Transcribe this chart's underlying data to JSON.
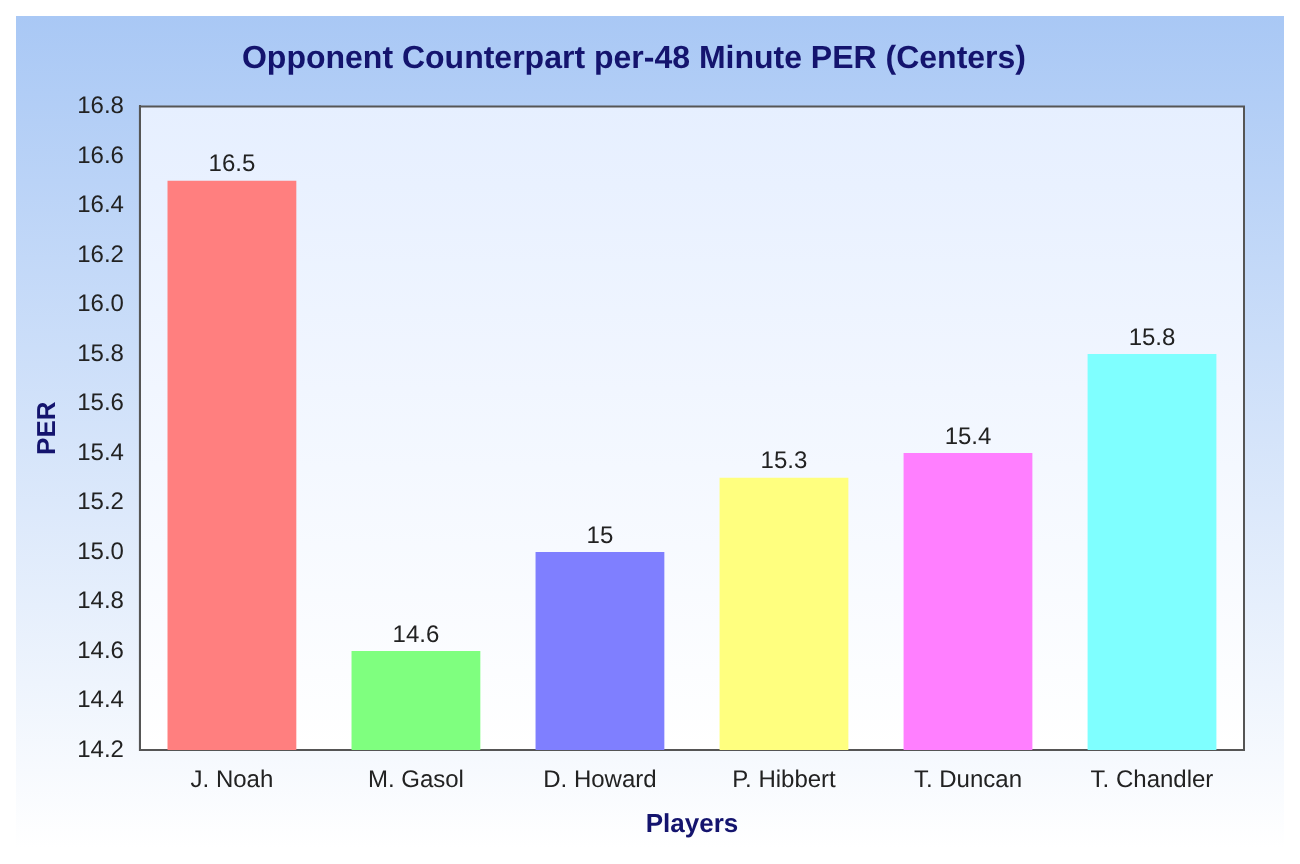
{
  "chart_data": {
    "type": "bar",
    "title": "Opponent Counterpart per-48 Minute PER (Centers)",
    "xlabel": "Players",
    "ylabel": "PER",
    "categories": [
      "J. Noah",
      "M. Gasol",
      "D. Howard",
      "P. Hibbert",
      "T. Duncan",
      "T. Chandler"
    ],
    "values": [
      16.5,
      14.6,
      15,
      15.3,
      15.4,
      15.8
    ],
    "colors": [
      "#ff7f7f",
      "#7fff7f",
      "#7f7fff",
      "#ffff7f",
      "#ff7fff",
      "#7fffff"
    ],
    "ylim": [
      14.2,
      16.8
    ],
    "yticks": [
      14.2,
      14.4,
      14.6,
      14.8,
      {
        "value": 15,
        "label": "15.0"
      },
      15.2,
      15.4,
      15.6,
      15.8,
      {
        "value": 16,
        "label": "16.0"
      },
      16.2,
      16.4,
      16.6,
      16.8
    ],
    "data_labels": true,
    "grid": false,
    "legend": false
  }
}
